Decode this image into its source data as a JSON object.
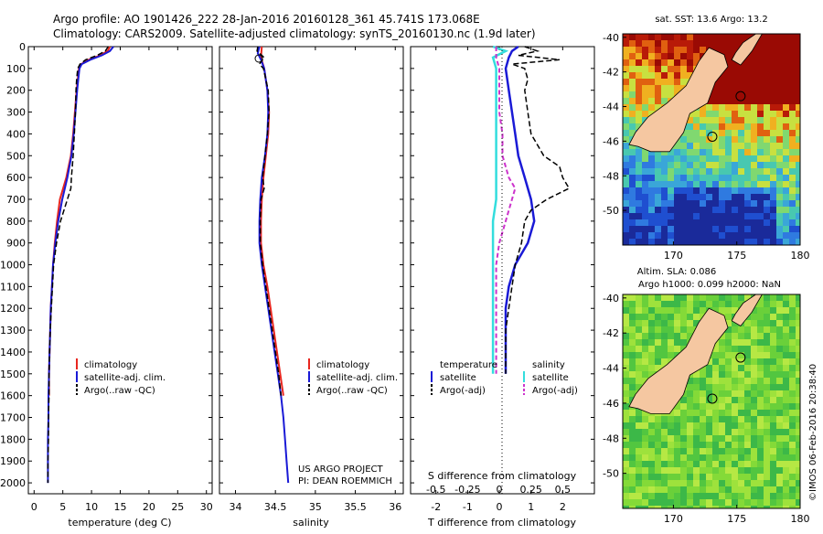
{
  "title_line1": "Argo profile: AO 1901426_222 28-Jan-2016 20160128_361 45.741S 173.068E",
  "title_line2": "Climatology: CARS2009. Satellite-adjusted climatology: synTS_20160130.nc (1.9d later)",
  "colors": {
    "climatology": "#e8261f",
    "satellite": "#1a1ad6",
    "argo": "#000000",
    "sat_salinity": "#33dddd",
    "argo_salinity": "#cc33cc"
  },
  "chart_data": [
    {
      "type": "line",
      "name": "temperature-panel",
      "xlabel": "temperature (deg C)",
      "ylim": [
        0,
        2050
      ],
      "xlim": [
        -1,
        31
      ],
      "xticks": [
        0,
        5,
        10,
        15,
        20,
        25,
        30
      ],
      "yticks": [
        0,
        100,
        200,
        300,
        400,
        500,
        600,
        700,
        800,
        900,
        1000,
        1100,
        1200,
        1300,
        1400,
        1500,
        1600,
        1700,
        1800,
        1900,
        2000
      ],
      "legend": [
        "climatology",
        "satellite-adj. clim.",
        "Argo(..raw -QC)"
      ],
      "series": [
        {
          "name": "climatology",
          "depth": [
            0,
            20,
            40,
            60,
            80,
            100,
            150,
            200,
            300,
            400,
            500,
            600,
            700,
            800,
            900,
            1000,
            1100,
            1200,
            1300,
            1400,
            1500,
            1600
          ],
          "values": [
            13.2,
            12.8,
            11.5,
            9.5,
            8.2,
            7.8,
            7.6,
            7.4,
            7.1,
            6.8,
            6.4,
            5.6,
            4.5,
            4.0,
            3.6,
            3.3,
            3.1,
            2.9,
            2.8,
            2.7,
            2.6,
            2.6
          ]
        },
        {
          "name": "satellite-adj. clim.",
          "depth": [
            0,
            20,
            40,
            60,
            80,
            100,
            150,
            200,
            300,
            400,
            500,
            600,
            700,
            800,
            900,
            1000,
            1100,
            1200,
            1300,
            1400,
            1500,
            1600,
            1700,
            1800,
            1900,
            2000
          ],
          "values": [
            13.8,
            13.2,
            11.8,
            9.8,
            8.3,
            7.9,
            7.7,
            7.5,
            7.2,
            6.9,
            6.5,
            5.8,
            4.9,
            4.2,
            3.7,
            3.3,
            3.1,
            2.9,
            2.8,
            2.7,
            2.6,
            2.5,
            2.5,
            2.4,
            2.4,
            2.4
          ]
        },
        {
          "name": "Argo(..raw -QC)",
          "depth": [
            0,
            20,
            40,
            60,
            80,
            100,
            150,
            200,
            300,
            400,
            500,
            600,
            650,
            700,
            800,
            900,
            1000,
            1100,
            1200,
            1300,
            1400,
            1500,
            1600,
            1700,
            1800,
            1900,
            2000
          ],
          "values": [
            12.9,
            12.4,
            11.0,
            9.0,
            8.0,
            7.6,
            7.4,
            7.3,
            7.2,
            7.0,
            6.8,
            6.5,
            6.4,
            5.8,
            4.6,
            3.9,
            3.4,
            3.2,
            3.0,
            2.8,
            2.7,
            2.6,
            2.6,
            2.5,
            2.5,
            2.4,
            2.4
          ]
        }
      ]
    },
    {
      "type": "line",
      "name": "salinity-panel",
      "xlabel": "salinity",
      "ylim": [
        0,
        2050
      ],
      "xlim": [
        33.8,
        36.1
      ],
      "xticks": [
        34,
        34.5,
        35,
        35.5,
        36
      ],
      "legend": [
        "climatology",
        "satellite-adj. clim.",
        "Argo(..raw -QC)"
      ],
      "annotation": [
        "US ARGO PROJECT",
        "PI: DEAN ROEMMICH"
      ],
      "series": [
        {
          "name": "climatology",
          "depth": [
            0,
            50,
            100,
            200,
            300,
            400,
            500,
            600,
            700,
            800,
            900,
            1000,
            1100,
            1200,
            1300,
            1400,
            1500,
            1600
          ],
          "values": [
            34.33,
            34.32,
            34.36,
            34.4,
            34.42,
            34.41,
            34.38,
            34.35,
            34.33,
            34.32,
            34.32,
            34.35,
            34.4,
            34.44,
            34.48,
            34.52,
            34.56,
            34.6
          ]
        },
        {
          "name": "satellite-adj. clim.",
          "depth": [
            0,
            30,
            60,
            100,
            200,
            300,
            400,
            500,
            600,
            700,
            800,
            900,
            1000,
            1100,
            1200,
            1300,
            1400,
            1500,
            1600,
            1700,
            1800,
            1900,
            2000
          ],
          "values": [
            34.3,
            34.28,
            34.32,
            34.36,
            34.4,
            34.41,
            34.4,
            34.37,
            34.33,
            34.31,
            34.3,
            34.3,
            34.33,
            34.37,
            34.41,
            34.45,
            34.49,
            34.53,
            34.57,
            34.6,
            34.62,
            34.64,
            34.66
          ]
        },
        {
          "name": "Argo(..raw -QC)",
          "depth": [
            0,
            20,
            50,
            80,
            100,
            200,
            300,
            400,
            500,
            600,
            650,
            700,
            800,
            900,
            1000,
            1100,
            1200,
            1300,
            1400,
            1500,
            1600
          ],
          "values": [
            34.28,
            34.27,
            34.36,
            34.3,
            34.35,
            34.41,
            34.42,
            34.4,
            34.37,
            34.34,
            34.36,
            34.32,
            34.31,
            34.31,
            34.34,
            34.38,
            34.42,
            34.46,
            34.5,
            34.54,
            34.57
          ]
        }
      ]
    },
    {
      "type": "line",
      "name": "difference-panel",
      "xlabel": "T difference from climatology",
      "xlabel_top": "S difference from climatology",
      "xlim": [
        -2.8,
        3.0
      ],
      "xticks": [
        -2,
        -1,
        0,
        1,
        2
      ],
      "s_ticks": [
        "-0.5",
        "-0.25",
        "0",
        "0.25",
        "0.5"
      ],
      "s_tick_positions": [
        -2,
        -1,
        0,
        1,
        2
      ],
      "legend_temperature_title": "temperature",
      "legend_temperature": [
        "satellite",
        "Argo(-adj)"
      ],
      "legend_salinity_title": "salinity",
      "legend_salinity": [
        "satellite",
        "Argo(-adj)"
      ],
      "series": [
        {
          "name": "temperature satellite",
          "depth": [
            0,
            20,
            50,
            100,
            200,
            300,
            400,
            500,
            600,
            700,
            800,
            900,
            1000,
            1100,
            1200,
            1300,
            1400,
            1500
          ],
          "values": [
            0.6,
            0.4,
            0.3,
            0.2,
            0.3,
            0.4,
            0.5,
            0.6,
            0.8,
            1.0,
            1.1,
            0.9,
            0.5,
            0.3,
            0.2,
            0.2,
            0.2,
            0.2
          ]
        },
        {
          "name": "temperature Argo(-adj)",
          "depth": [
            0,
            20,
            40,
            60,
            80,
            100,
            150,
            200,
            300,
            400,
            500,
            550,
            600,
            650,
            700,
            750,
            800,
            900,
            1000,
            1100,
            1200,
            1300,
            1400,
            1500
          ],
          "values": [
            0.8,
            1.2,
            0.6,
            1.9,
            0.4,
            0.8,
            0.9,
            0.8,
            0.9,
            1.0,
            1.4,
            1.9,
            2.0,
            2.2,
            1.5,
            1.0,
            0.8,
            0.7,
            0.5,
            0.4,
            0.3,
            0.2,
            0.2,
            0.2
          ]
        },
        {
          "name": "salinity satellite",
          "depth": [
            0,
            20,
            50,
            100,
            200,
            300,
            400,
            500,
            600,
            700,
            800,
            900,
            1000,
            1100,
            1200,
            1300,
            1400,
            1500
          ],
          "values": [
            -0.2,
            0.2,
            -0.2,
            -0.1,
            -0.1,
            -0.1,
            -0.1,
            -0.1,
            -0.1,
            -0.1,
            -0.2,
            -0.2,
            -0.2,
            -0.2,
            -0.2,
            -0.2,
            -0.2,
            -0.2
          ]
        },
        {
          "name": "salinity Argo(-adj)",
          "depth": [
            0,
            50,
            100,
            200,
            300,
            400,
            500,
            600,
            650,
            700,
            800,
            900,
            1000,
            1100,
            1200,
            1300,
            1400,
            1500
          ],
          "values": [
            -0.1,
            -0.1,
            0.0,
            0.0,
            0.0,
            0.1,
            0.1,
            0.3,
            0.5,
            0.4,
            0.2,
            0.0,
            -0.1,
            -0.1,
            -0.1,
            -0.1,
            -0.1,
            -0.1
          ]
        }
      ]
    },
    {
      "type": "heatmap",
      "name": "sst-map",
      "title": "sat. SST: 13.6  Argo: 13.2",
      "xlim": [
        166,
        180
      ],
      "ylim": [
        -52,
        -39.8
      ],
      "xticks": [
        170,
        175,
        180
      ],
      "yticks": [
        -40,
        -42,
        -44,
        -46,
        -48,
        -50
      ]
    },
    {
      "type": "heatmap",
      "name": "sla-map",
      "title_line1": "Altim. SLA: 0.086",
      "title_line2": "Argo h1000: 0.099 h2000: NaN",
      "xlim": [
        166,
        180
      ],
      "ylim": [
        -52,
        -39.8
      ],
      "xticks": [
        170,
        175,
        180
      ],
      "yticks": [
        -40,
        -42,
        -44,
        -46,
        -48,
        -50
      ]
    }
  ],
  "credit": "©IMOS 06-Feb-2016 20:38:40"
}
